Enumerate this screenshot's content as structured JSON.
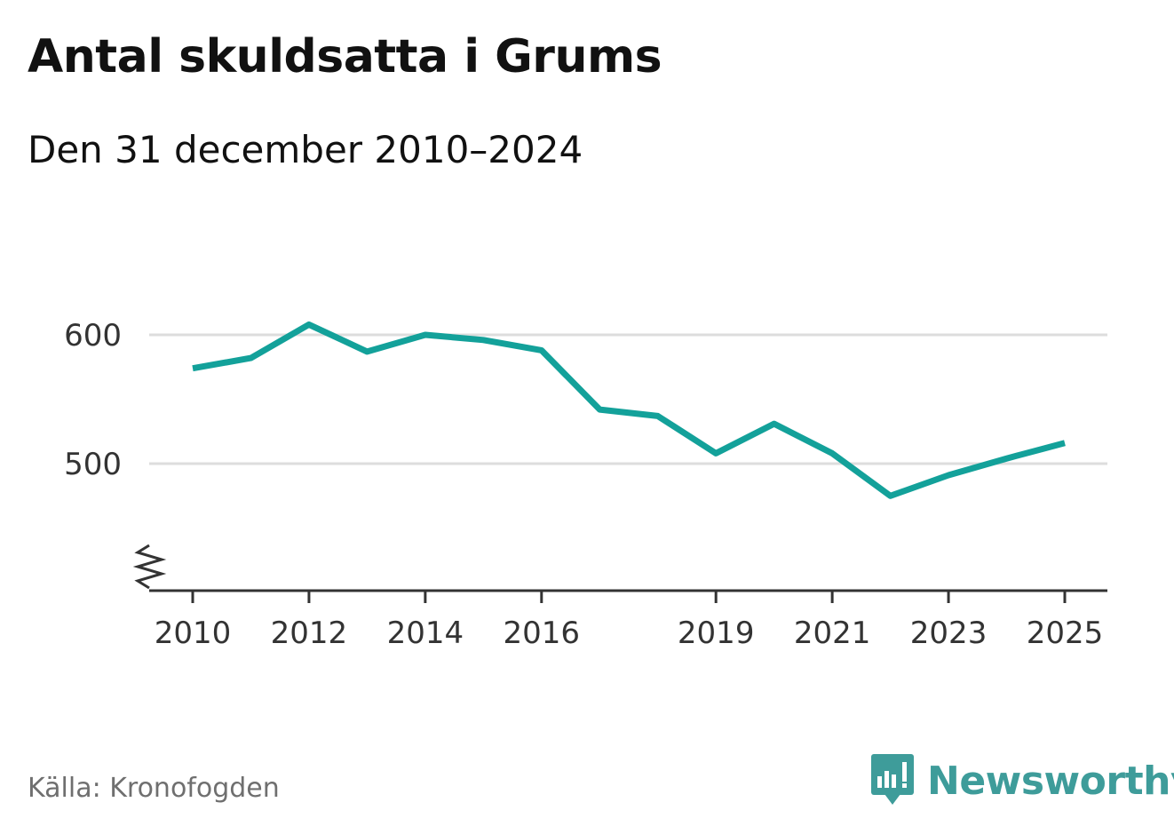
{
  "header": {
    "title": "Antal skuldsatta i Grums",
    "subtitle": "Den 31 december 2010–2024"
  },
  "footer": {
    "source": "Källa: Kronofogden",
    "brand": "Newsworthy",
    "brand_icon": "bar-chart-speech-bubble-icon",
    "brand_color": "#3e9c9a"
  },
  "chart_data": {
    "type": "line",
    "title": "Antal skuldsatta i Grums",
    "subtitle": "Den 31 december 2010–2024",
    "xlabel": "",
    "ylabel": "",
    "x": [
      2010,
      2011,
      2012,
      2013,
      2014,
      2015,
      2016,
      2017,
      2018,
      2019,
      2020,
      2021,
      2022,
      2023,
      2024,
      2025
    ],
    "series": [
      {
        "name": "Antal skuldsatta",
        "color": "#13a19a",
        "values": [
          574,
          582,
          608,
          587,
          600,
          596,
          588,
          542,
          537,
          508,
          531,
          508,
          475,
          491,
          504,
          516
        ]
      }
    ],
    "xticks": [
      2010,
      2012,
      2014,
      2016,
      2019,
      2021,
      2023,
      2025
    ],
    "yticks": [
      500,
      600
    ],
    "ylim": [
      400,
      640
    ],
    "grid": true,
    "axis_break": true,
    "legend": "none"
  }
}
